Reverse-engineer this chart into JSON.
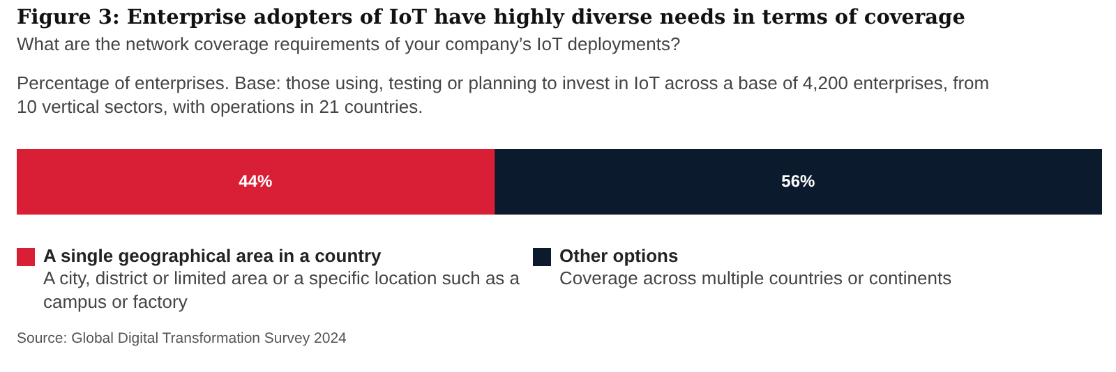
{
  "chart_data": {
    "type": "bar",
    "title": "Figure 3: Enterprise adopters of IoT have highly diverse needs in terms of coverage",
    "subtitle": "What are the network coverage requirements of your company’s IoT deployments?",
    "annotations": [
      "Percentage of enterprises. Base: those using, testing or planning to invest in IoT across a base of 4,200 enterprises, from 10 vertical sectors, with operations in 21 countries.",
      "A city, district or limited area or a specific location such as a campus or factory",
      "Coverage across multiple countries or continents",
      "Source: Global Digital Transformation Survey 2024"
    ],
    "categories": [
      null
    ],
    "orientation": "horizontal",
    "stacked": true,
    "xlim": [
      0,
      100
    ],
    "tick_labels": false,
    "legend": "bottom left",
    "series": [
      {
        "name": "A single geographical area in a country",
        "color": "#d81f35",
        "values": [
          44
        ],
        "value_labels": [
          "44%"
        ]
      },
      {
        "name": "Other options",
        "color": "#0c1a2e",
        "values": [
          56
        ],
        "value_labels": [
          "56%"
        ]
      }
    ]
  }
}
